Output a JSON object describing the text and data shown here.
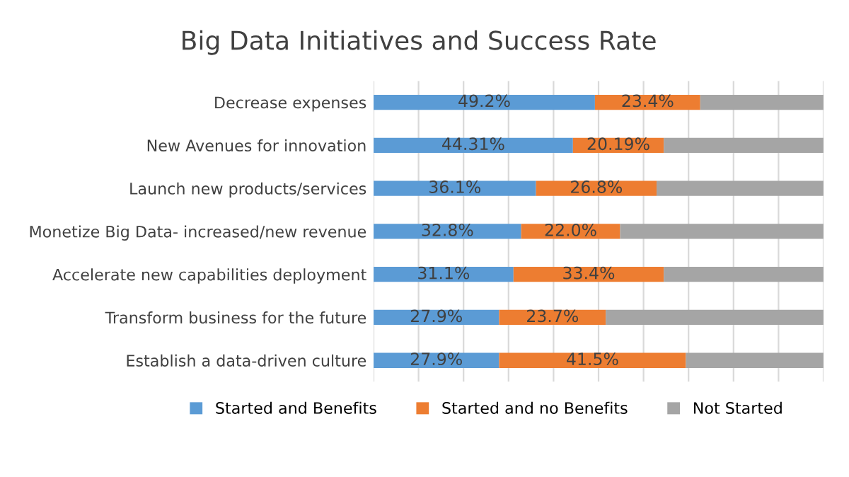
{
  "chart_data": {
    "type": "bar",
    "title": "Big Data Initiatives and Success Rate",
    "orientation": "horizontal",
    "stacked": true,
    "categories": [
      "Decrease expenses",
      "New Avenues for innovation",
      "Launch new products/services",
      "Monetize Big Data- increased/new revenue",
      "Accelerate new capabilities deployment",
      "Transform business for the future",
      "Establish a data-driven culture"
    ],
    "series": [
      {
        "name": "Started and Benefits",
        "color": "#5b9bd5",
        "values": [
          49.2,
          44.31,
          36.1,
          32.8,
          31.1,
          27.9,
          27.9
        ],
        "value_labels": [
          "49.2%",
          "44.31%",
          "36.1%",
          "32.8%",
          "31.1%",
          "27.9%",
          "27.9%"
        ]
      },
      {
        "name": "Started and no Benefits",
        "color": "#ed7d31",
        "values": [
          23.4,
          20.19,
          26.8,
          22.0,
          33.4,
          23.7,
          41.5
        ],
        "value_labels": [
          "23.4%",
          "20.19%",
          "26.8%",
          "22.0%",
          "33.4%",
          "23.7%",
          "41.5%"
        ]
      },
      {
        "name": "Not Started",
        "color": "#a5a5a5",
        "values": [
          27.4,
          35.5,
          37.1,
          45.2,
          35.5,
          48.4,
          30.6
        ],
        "value_labels": [
          null,
          null,
          null,
          null,
          null,
          null,
          null
        ]
      }
    ],
    "xlim": [
      0,
      100
    ],
    "xticks": [
      {
        "value": 0,
        "label": null
      },
      {
        "value": 10,
        "label": null
      },
      {
        "value": 20,
        "label": null
      },
      {
        "value": 30,
        "label": null
      },
      {
        "value": 40,
        "label": null
      },
      {
        "value": 50,
        "label": null
      },
      {
        "value": 60,
        "label": null
      },
      {
        "value": 70,
        "label": null
      },
      {
        "value": 80,
        "label": null
      },
      {
        "value": 90,
        "label": null
      },
      {
        "value": 100,
        "label": null
      }
    ],
    "grid": "x",
    "legend": "bottom",
    "tick_labels": "y"
  }
}
